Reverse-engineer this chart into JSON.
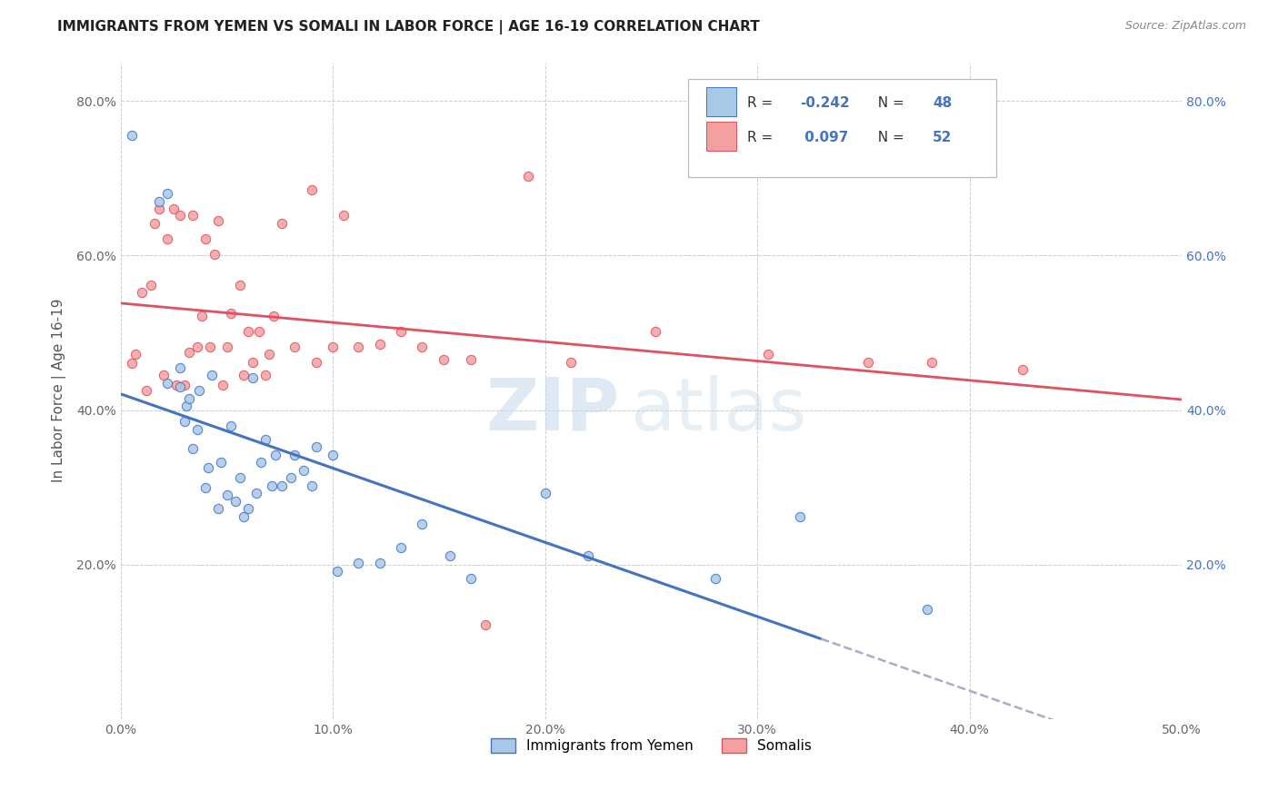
{
  "title": "IMMIGRANTS FROM YEMEN VS SOMALI IN LABOR FORCE | AGE 16-19 CORRELATION CHART",
  "source": "Source: ZipAtlas.com",
  "ylabel": "In Labor Force | Age 16-19",
  "legend_label1": "Immigrants from Yemen",
  "legend_label2": "Somalis",
  "r1": -0.242,
  "n1": 48,
  "r2": 0.097,
  "n2": 52,
  "color1": "#a8c8e8",
  "color2": "#f4a0a0",
  "line1_color": "#4472c4",
  "line2_color": "#e05060",
  "dashed_color": "#aaaacc",
  "xlim": [
    0.0,
    0.5
  ],
  "ylim": [
    0.0,
    0.85
  ],
  "xticks": [
    0.0,
    0.1,
    0.2,
    0.3,
    0.4,
    0.5
  ],
  "yticks": [
    0.0,
    0.2,
    0.4,
    0.6,
    0.8
  ],
  "xticklabels": [
    "0.0%",
    "10.0%",
    "20.0%",
    "30.0%",
    "40.0%",
    "50.0%"
  ],
  "yticklabels_left": [
    "",
    "20.0%",
    "40.0%",
    "60.0%",
    "80.0%"
  ],
  "yticklabels_right": [
    "20.0%",
    "40.0%",
    "60.0%",
    "80.0%"
  ],
  "yemen_x": [
    0.005,
    0.018,
    0.022,
    0.022,
    0.028,
    0.028,
    0.03,
    0.031,
    0.032,
    0.034,
    0.036,
    0.037,
    0.04,
    0.041,
    0.043,
    0.046,
    0.047,
    0.05,
    0.052,
    0.054,
    0.056,
    0.058,
    0.06,
    0.062,
    0.064,
    0.066,
    0.068,
    0.071,
    0.073,
    0.076,
    0.08,
    0.082,
    0.086,
    0.09,
    0.092,
    0.1,
    0.102,
    0.112,
    0.122,
    0.132,
    0.142,
    0.155,
    0.165,
    0.2,
    0.22,
    0.28,
    0.32,
    0.38
  ],
  "yemen_y": [
    0.755,
    0.67,
    0.68,
    0.435,
    0.43,
    0.455,
    0.385,
    0.405,
    0.415,
    0.35,
    0.375,
    0.425,
    0.3,
    0.325,
    0.445,
    0.272,
    0.332,
    0.29,
    0.38,
    0.282,
    0.312,
    0.262,
    0.272,
    0.442,
    0.292,
    0.332,
    0.362,
    0.302,
    0.342,
    0.302,
    0.312,
    0.342,
    0.322,
    0.302,
    0.352,
    0.342,
    0.192,
    0.202,
    0.202,
    0.222,
    0.252,
    0.212,
    0.182,
    0.292,
    0.212,
    0.182,
    0.262,
    0.142
  ],
  "somali_x": [
    0.005,
    0.007,
    0.01,
    0.012,
    0.014,
    0.016,
    0.018,
    0.02,
    0.022,
    0.025,
    0.026,
    0.028,
    0.03,
    0.032,
    0.034,
    0.036,
    0.038,
    0.04,
    0.042,
    0.044,
    0.046,
    0.048,
    0.05,
    0.052,
    0.056,
    0.058,
    0.06,
    0.062,
    0.065,
    0.068,
    0.07,
    0.072,
    0.076,
    0.082,
    0.09,
    0.092,
    0.1,
    0.105,
    0.112,
    0.122,
    0.132,
    0.142,
    0.152,
    0.165,
    0.172,
    0.192,
    0.212,
    0.252,
    0.305,
    0.352,
    0.382,
    0.425
  ],
  "somali_y": [
    0.46,
    0.472,
    0.552,
    0.425,
    0.562,
    0.642,
    0.66,
    0.445,
    0.622,
    0.66,
    0.432,
    0.652,
    0.432,
    0.475,
    0.652,
    0.482,
    0.522,
    0.622,
    0.482,
    0.602,
    0.645,
    0.432,
    0.482,
    0.525,
    0.562,
    0.445,
    0.502,
    0.462,
    0.502,
    0.445,
    0.472,
    0.522,
    0.642,
    0.482,
    0.685,
    0.462,
    0.482,
    0.652,
    0.482,
    0.485,
    0.502,
    0.482,
    0.465,
    0.465,
    0.122,
    0.702,
    0.462,
    0.502,
    0.472,
    0.462,
    0.462,
    0.452
  ],
  "watermark_zip": "ZIP",
  "watermark_atlas": "atlas",
  "background_color": "#ffffff",
  "grid_color": "#cccccc",
  "title_fontsize": 11,
  "source_fontsize": 9,
  "tick_fontsize": 10,
  "ylabel_fontsize": 11
}
